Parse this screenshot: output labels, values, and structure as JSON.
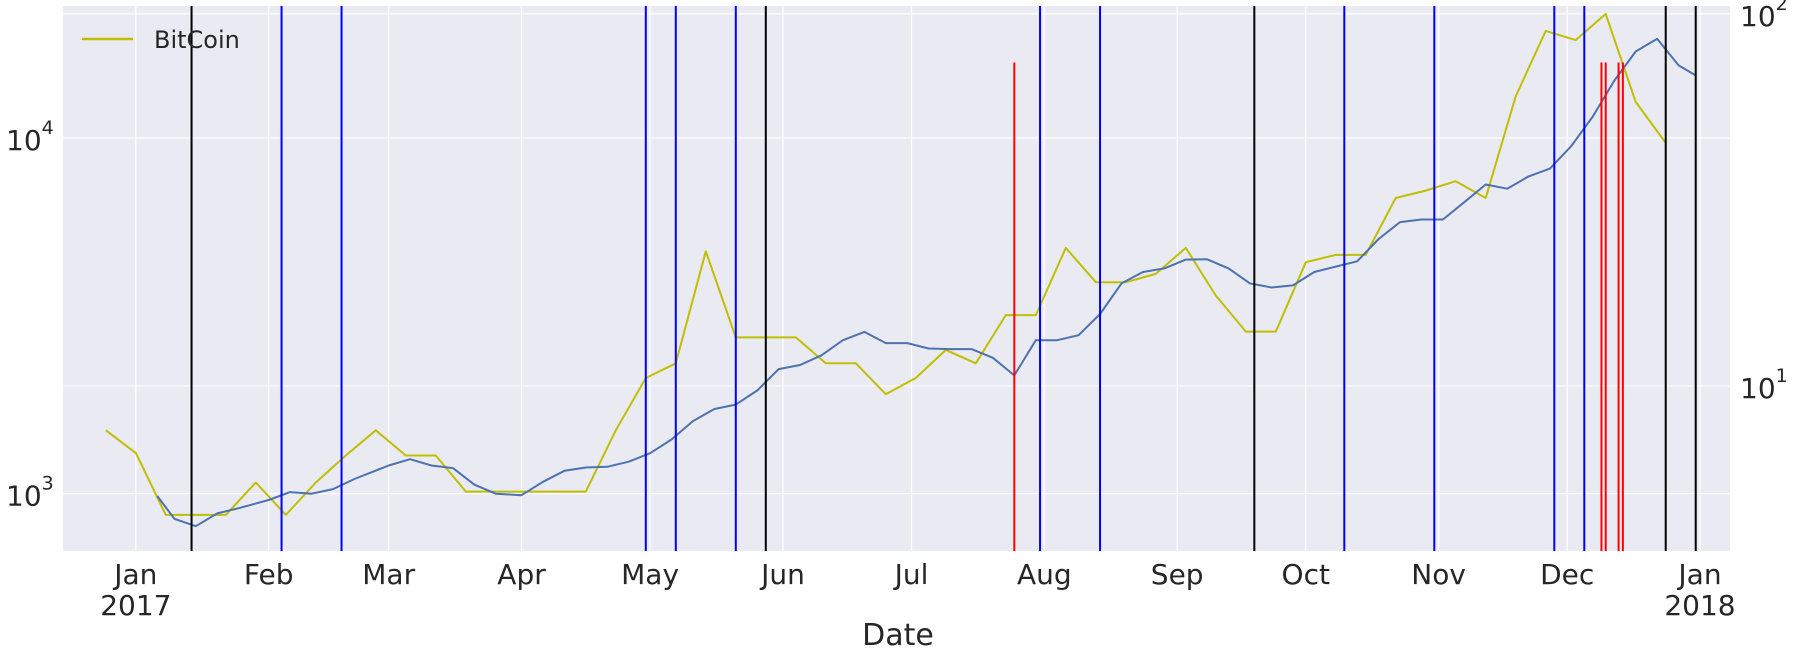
{
  "chart_data": {
    "type": "line",
    "xlabel": "Date",
    "x_range": [
      "2016-12-15",
      "2018-01-08"
    ],
    "x_ticks": [
      {
        "date": "2017-01-01",
        "label": "Jan",
        "sublabel": "2017"
      },
      {
        "date": "2017-02-01",
        "label": "Feb",
        "sublabel": ""
      },
      {
        "date": "2017-03-01",
        "label": "Mar",
        "sublabel": ""
      },
      {
        "date": "2017-04-01",
        "label": "Apr",
        "sublabel": ""
      },
      {
        "date": "2017-05-01",
        "label": "May",
        "sublabel": ""
      },
      {
        "date": "2017-06-01",
        "label": "Jun",
        "sublabel": ""
      },
      {
        "date": "2017-07-01",
        "label": "Jul",
        "sublabel": ""
      },
      {
        "date": "2017-08-01",
        "label": "Aug",
        "sublabel": ""
      },
      {
        "date": "2017-09-01",
        "label": "Sep",
        "sublabel": ""
      },
      {
        "date": "2017-10-01",
        "label": "Oct",
        "sublabel": ""
      },
      {
        "date": "2017-11-01",
        "label": "Nov",
        "sublabel": ""
      },
      {
        "date": "2017-12-01",
        "label": "Dec",
        "sublabel": ""
      },
      {
        "date": "2018-01-01",
        "label": "Jan",
        "sublabel": "2018"
      }
    ],
    "left_axis": {
      "scale": "log",
      "ylim": [
        690,
        23500
      ],
      "ticks": [
        {
          "value": 1000,
          "base": "10",
          "exp": "3"
        },
        {
          "value": 10000,
          "base": "10",
          "exp": "4"
        }
      ]
    },
    "right_axis": {
      "scale": "log",
      "ylim": [
        3.6,
        105
      ],
      "ticks": [
        {
          "value": 10,
          "base": "10",
          "exp": "1"
        },
        {
          "value": 100,
          "base": "10",
          "exp": "2"
        }
      ]
    },
    "grid": true,
    "legend": {
      "placement": "top-left",
      "entries": [
        {
          "label": "BitCoin",
          "color": "#bfbf00"
        }
      ]
    },
    "series": [
      {
        "name": "BitCoin",
        "axis": "right",
        "color": "#bfbf00",
        "x": [
          "2016-12-25",
          "2017-01-01",
          "2017-01-08",
          "2017-01-15",
          "2017-01-22",
          "2017-01-29",
          "2017-02-05",
          "2017-02-12",
          "2017-02-19",
          "2017-02-26",
          "2017-03-05",
          "2017-03-12",
          "2017-03-19",
          "2017-03-26",
          "2017-04-02",
          "2017-04-09",
          "2017-04-16",
          "2017-04-23",
          "2017-04-30",
          "2017-05-07",
          "2017-05-14",
          "2017-05-21",
          "2017-05-28",
          "2017-06-04",
          "2017-06-11",
          "2017-06-18",
          "2017-06-25",
          "2017-07-02",
          "2017-07-09",
          "2017-07-16",
          "2017-07-23",
          "2017-07-30",
          "2017-08-06",
          "2017-08-13",
          "2017-08-20",
          "2017-08-27",
          "2017-09-03",
          "2017-09-10",
          "2017-09-17",
          "2017-09-24",
          "2017-10-01",
          "2017-10-08",
          "2017-10-15",
          "2017-10-22",
          "2017-10-29",
          "2017-11-05",
          "2017-11-12",
          "2017-11-19",
          "2017-11-26",
          "2017-12-03",
          "2017-12-10",
          "2017-12-17",
          "2017-12-24"
        ],
        "values": [
          7.6,
          6.6,
          4.5,
          4.5,
          4.5,
          5.5,
          4.5,
          5.5,
          6.5,
          7.6,
          6.5,
          6.5,
          5.2,
          5.2,
          5.2,
          5.2,
          5.2,
          7.6,
          10.5,
          11.5,
          23,
          13.5,
          13.5,
          13.5,
          11.5,
          11.5,
          9.5,
          10.5,
          12.5,
          11.5,
          15.5,
          15.5,
          23.5,
          19,
          19,
          20,
          23.5,
          17.5,
          14,
          14,
          21.5,
          22.5,
          22.5,
          32,
          33.5,
          35.5,
          32,
          60,
          90,
          85,
          100,
          58,
          45
        ]
      },
      {
        "name": "",
        "axis": "left",
        "color": "#4c72b0",
        "x": [
          "2017-01-06",
          "2017-01-10",
          "2017-01-15",
          "2017-01-20",
          "2017-01-25",
          "2017-02-01",
          "2017-02-06",
          "2017-02-11",
          "2017-02-16",
          "2017-02-21",
          "2017-03-01",
          "2017-03-06",
          "2017-03-11",
          "2017-03-16",
          "2017-03-21",
          "2017-03-26",
          "2017-04-01",
          "2017-04-06",
          "2017-04-11",
          "2017-04-16",
          "2017-04-21",
          "2017-04-26",
          "2017-05-01",
          "2017-05-06",
          "2017-05-11",
          "2017-05-16",
          "2017-05-21",
          "2017-05-26",
          "2017-05-31",
          "2017-06-05",
          "2017-06-10",
          "2017-06-15",
          "2017-06-20",
          "2017-06-25",
          "2017-06-30",
          "2017-07-05",
          "2017-07-10",
          "2017-07-15",
          "2017-07-20",
          "2017-07-25",
          "2017-07-30",
          "2017-08-04",
          "2017-08-09",
          "2017-08-14",
          "2017-08-19",
          "2017-08-24",
          "2017-08-29",
          "2017-09-03",
          "2017-09-08",
          "2017-09-13",
          "2017-09-18",
          "2017-09-23",
          "2017-09-28",
          "2017-10-03",
          "2017-10-08",
          "2017-10-13",
          "2017-10-18",
          "2017-10-23",
          "2017-10-28",
          "2017-11-02",
          "2017-11-07",
          "2017-11-12",
          "2017-11-17",
          "2017-11-22",
          "2017-11-27",
          "2017-12-02",
          "2017-12-07",
          "2017-12-12",
          "2017-12-17",
          "2017-12-22",
          "2017-12-27",
          "2017-12-31"
        ],
        "values": [
          985,
          850,
          810,
          880,
          910,
          960,
          1010,
          1000,
          1030,
          1100,
          1200,
          1250,
          1200,
          1180,
          1060,
          1000,
          990,
          1080,
          1160,
          1185,
          1190,
          1230,
          1300,
          1420,
          1600,
          1730,
          1780,
          1950,
          2240,
          2300,
          2450,
          2700,
          2850,
          2650,
          2650,
          2560,
          2550,
          2550,
          2410,
          2150,
          2700,
          2700,
          2790,
          3200,
          3900,
          4200,
          4300,
          4550,
          4560,
          4300,
          3900,
          3800,
          3850,
          4200,
          4350,
          4500,
          5200,
          5800,
          5900,
          5900,
          6600,
          7400,
          7200,
          7800,
          8200,
          9500,
          11500,
          14500,
          17500,
          19000,
          16000,
          15000
        ]
      }
    ],
    "vertical_lines": {
      "ymax_value": 105,
      "groups": [
        {
          "color": "#000000",
          "dates": [
            "2017-01-14",
            "2017-05-28",
            "2017-09-19",
            "2017-12-24",
            "2017-12-31"
          ],
          "ymin_value": 3.6
        },
        {
          "color": "#0000ff",
          "dates": [
            "2017-02-04",
            "2017-02-18",
            "2017-04-30",
            "2017-05-07",
            "2017-05-21",
            "2017-07-31",
            "2017-08-14",
            "2017-10-10",
            "2017-10-31",
            "2017-11-28",
            "2017-12-05"
          ],
          "ymin_value": 3.6
        },
        {
          "color": "#ff0000",
          "dates": [
            "2017-07-25",
            "2017-12-09",
            "2017-12-10",
            "2017-12-13",
            "2017-12-14"
          ],
          "ymin_value": 3.6,
          "ymax_value": 74
        }
      ]
    }
  }
}
